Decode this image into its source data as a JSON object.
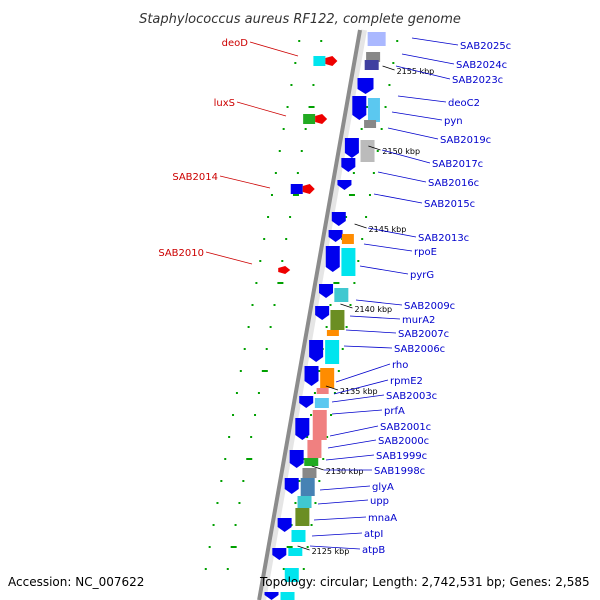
{
  "title": "Staphylococcus aureus RF122, complete genome",
  "accession": "Accession: NC_007622",
  "topology": "Topology: circular; Length: 2,742,531 bp; Genes: 2,585",
  "colors": {
    "backbone": "#8c8c8c",
    "forward_gene": "#0000ee",
    "label_blue": "#0000cc",
    "label_red": "#cc0000",
    "cyan": "#00e5ee",
    "light_blue": "#5bc8f0",
    "gray": "#888888",
    "orange": "#ff8c00",
    "olive": "#6b8e23",
    "salmon": "#f08080",
    "steel": "#4682b4",
    "green": "#22aa22",
    "red": "#ee0000",
    "dotted_track": "#00a000"
  },
  "kbp_ticks": [
    "2155 kbp",
    "2150 kbp",
    "2145 kbp",
    "2140 kbp",
    "2135 kbp",
    "2130 kbp",
    "2125 kbp"
  ],
  "forward_labels": [
    "deoD",
    "luxS",
    "SAB2014",
    "SAB2010"
  ],
  "reverse_labels": [
    "SAB2025c",
    "SAB2024c",
    "SAB2023c",
    "deoC2",
    "pyn",
    "SAB2019c",
    "SAB2017c",
    "SAB2016c",
    "SAB2015c",
    "SAB2013c",
    "rpoE",
    "pyrG",
    "SAB2009c",
    "murA2",
    "SAB2007c",
    "SAB2006c",
    "rho",
    "rpmE2",
    "SAB2003c",
    "prfA",
    "SAB2001c",
    "SAB2000c",
    "SAB1999c",
    "SAB1998c",
    "glyA",
    "upp",
    "mnaA",
    "atpI",
    "atpB"
  ]
}
